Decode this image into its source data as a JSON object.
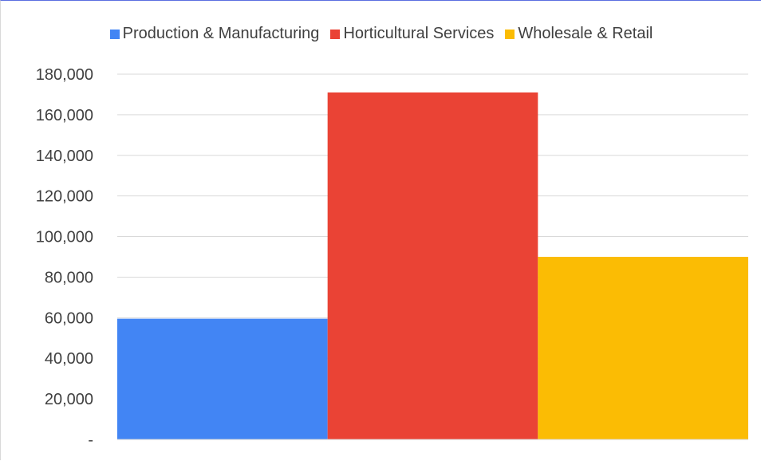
{
  "chart_data": {
    "type": "bar",
    "title": "",
    "xlabel": "",
    "ylabel": "",
    "ylim": [
      0,
      180000
    ],
    "yticks": [
      0,
      20000,
      40000,
      60000,
      80000,
      100000,
      120000,
      140000,
      160000,
      180000
    ],
    "ytick_labels": [
      "-",
      "20,000",
      "40,000",
      "60,000",
      "80,000",
      "100,000",
      "120,000",
      "140,000",
      "160,000",
      "180,000"
    ],
    "grid": true,
    "legend_position": "top",
    "series": [
      {
        "name": "Production & Manufacturing",
        "value": 59500,
        "color": "#4285f4"
      },
      {
        "name": "Horticultural Services",
        "value": 171000,
        "color": "#ea4335"
      },
      {
        "name": "Wholesale & Retail",
        "value": 90000,
        "color": "#fbbc04"
      }
    ]
  }
}
